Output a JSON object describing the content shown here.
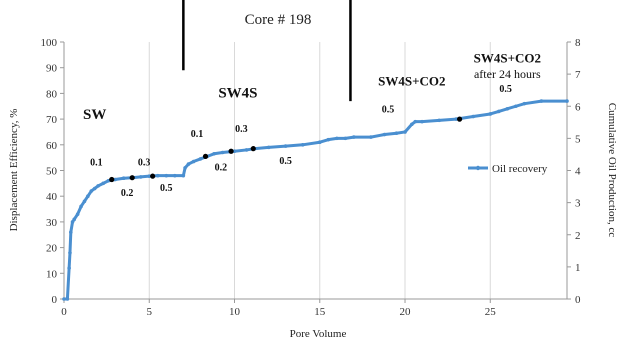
{
  "chart_data": {
    "type": "line",
    "title": "Core # 198",
    "xlabel": "Pore Volume",
    "ylabel": "Displacement Efficiency, %",
    "y2label": "Cumulative Oil Production, cc",
    "xlim": [
      0,
      29.5
    ],
    "ylim": [
      0,
      100
    ],
    "y2lim": [
      0,
      8
    ],
    "xticks": [
      "0",
      "5",
      "10",
      "15",
      "20",
      "25"
    ],
    "yticks": [
      "0",
      "10",
      "20",
      "30",
      "40",
      "50",
      "60",
      "70",
      "80",
      "90",
      "100"
    ],
    "y2ticks": [
      "0",
      "1",
      "2",
      "3",
      "4",
      "5",
      "6",
      "7",
      "8"
    ],
    "grid": "vertical",
    "legend_position": "right",
    "series": [
      {
        "name": "Oil recovery",
        "color": "#4a8fd0",
        "x": [
          0,
          0.2,
          0.3,
          0.35,
          0.4,
          0.5,
          0.6,
          0.8,
          1.0,
          1.2,
          1.4,
          1.6,
          1.8,
          2.0,
          2.3,
          2.6,
          3.0,
          3.5,
          4.0,
          4.5,
          5.0,
          5.5,
          6.0,
          6.5,
          7.0,
          7.1,
          7.3,
          7.6,
          8.0,
          8.4,
          8.8,
          9.3,
          10.0,
          10.7,
          11.2,
          12.0,
          13.0,
          14.0,
          15.0,
          15.5,
          16.0,
          16.5,
          17.0,
          18.0,
          18.8,
          19.5,
          20.0,
          20.4,
          20.6,
          21.0,
          22.0,
          23.0,
          24.0,
          25.0,
          25.5,
          26.0,
          26.5,
          27.0,
          28.0,
          29.5
        ],
        "y": [
          0,
          0,
          12,
          18,
          26,
          30,
          31,
          33,
          36,
          38,
          40,
          42,
          43,
          44,
          45,
          46,
          46.5,
          47,
          47.2,
          47.5,
          47.8,
          48,
          48,
          48,
          48,
          51,
          52.5,
          53.5,
          54.5,
          55.5,
          56.5,
          57,
          57.5,
          58,
          58.5,
          59,
          59.5,
          60,
          61,
          62,
          62.5,
          62.5,
          63,
          63,
          64,
          64.5,
          65,
          68,
          69,
          69,
          69.5,
          70,
          71,
          72,
          73,
          74,
          75,
          76,
          77,
          77
        ]
      }
    ],
    "marked_points": [
      {
        "x": 2.8,
        "y": 46.5
      },
      {
        "x": 4.0,
        "y": 47.2
      },
      {
        "x": 5.2,
        "y": 47.8
      },
      {
        "x": 8.3,
        "y": 55.5
      },
      {
        "x": 9.8,
        "y": 57.5
      },
      {
        "x": 11.1,
        "y": 58.5
      },
      {
        "x": 23.2,
        "y": 70
      }
    ],
    "phase_dividers_x": [
      7.0,
      16.8
    ],
    "phase_labels": [
      {
        "text": "SW",
        "x": 1.8,
        "y": 70,
        "class": "phase"
      },
      {
        "text": "SW4S",
        "x": 10.2,
        "y": 78.5,
        "class": "phase"
      },
      {
        "text": "SW4S+CO2",
        "x": 20.4,
        "y": 83,
        "class": "phase-sm"
      },
      {
        "text": "SW4S+CO2",
        "x": 26.0,
        "y": 92,
        "class": "phase-sm"
      },
      {
        "text": "after 24 hours",
        "x": 26.0,
        "y": 86,
        "class": "note"
      }
    ],
    "annotations": [
      {
        "text": "0.1",
        "x": 1.9,
        "y": 52
      },
      {
        "text": "0.2",
        "x": 3.7,
        "y": 40
      },
      {
        "text": "0.3",
        "x": 4.7,
        "y": 52
      },
      {
        "text": "0.5",
        "x": 6.0,
        "y": 42
      },
      {
        "text": "0.1",
        "x": 7.8,
        "y": 63
      },
      {
        "text": "0.2",
        "x": 9.2,
        "y": 50
      },
      {
        "text": "0.3",
        "x": 10.4,
        "y": 65
      },
      {
        "text": "0.5",
        "x": 13.0,
        "y": 52.5
      },
      {
        "text": "0.5",
        "x": 19.0,
        "y": 72.5
      },
      {
        "text": "0.5",
        "x": 25.9,
        "y": 80.5
      }
    ]
  }
}
